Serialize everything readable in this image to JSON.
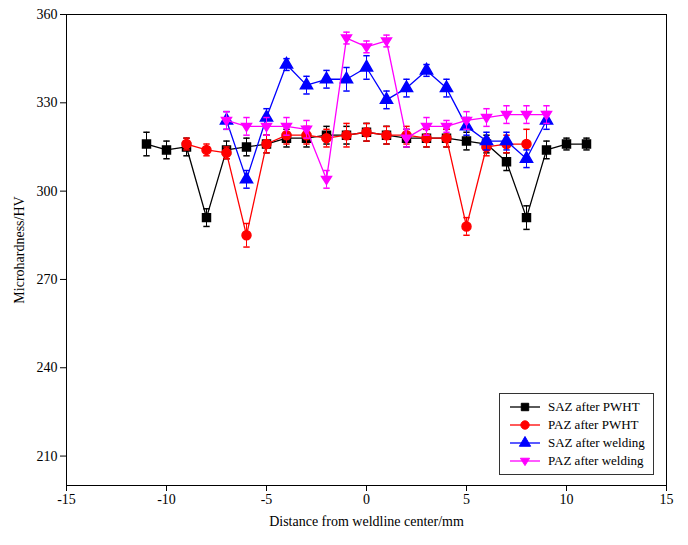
{
  "chart_data": {
    "type": "line",
    "xlabel": "Distance from weldline center/mm",
    "ylabel": "Microhardness/HV",
    "xlim": [
      -15,
      15
    ],
    "xticks": [
      -15,
      -10,
      -5,
      0,
      5,
      10,
      15
    ],
    "ylim": [
      200,
      360
    ],
    "yticks": [
      210,
      240,
      270,
      300,
      330,
      360
    ],
    "legend": "lower right",
    "series": [
      {
        "name": "SAZ after PWHT",
        "color": "#000000",
        "marker": "square",
        "x": [
          -11,
          -10,
          -9,
          -8,
          -7,
          -6,
          -5,
          -4,
          -3,
          -2,
          -1,
          0,
          1,
          2,
          3,
          4,
          5,
          6,
          7,
          8,
          9,
          10,
          11
        ],
        "values": [
          316,
          314,
          315,
          291,
          314,
          315,
          316,
          318,
          318,
          319,
          319,
          320,
          319,
          318,
          318,
          318,
          317,
          316,
          310,
          291,
          314,
          316,
          316
        ],
        "errors": [
          4,
          3,
          3,
          3,
          3,
          3,
          3,
          3,
          3,
          3,
          3,
          3,
          3,
          3,
          3,
          3,
          3,
          3,
          3,
          4,
          3,
          2,
          2
        ]
      },
      {
        "name": "PAZ after PWHT",
        "color": "#ff0000",
        "marker": "circle",
        "x": [
          -9,
          -8,
          -7,
          -6,
          -5,
          -4,
          -3,
          -2,
          -1,
          0,
          1,
          2,
          3,
          4,
          5,
          6,
          7,
          8
        ],
        "values": [
          316,
          314,
          313,
          285,
          316,
          319,
          319,
          318,
          319,
          320,
          319,
          319,
          318,
          318,
          288,
          315,
          316,
          316
        ],
        "errors": [
          2,
          2,
          2,
          4,
          3,
          3,
          3,
          3,
          4,
          3,
          3,
          3,
          3,
          3,
          3,
          3,
          3,
          5
        ]
      },
      {
        "name": "SAZ after welding",
        "color": "#0000ff",
        "marker": "triangle",
        "x": [
          -7,
          -6,
          -5,
          -4,
          -3,
          -2,
          -1,
          0,
          1,
          2,
          3,
          4,
          5,
          6,
          7,
          8,
          9
        ],
        "values": [
          324,
          304,
          325,
          343,
          336,
          338,
          338,
          342,
          331,
          335,
          341,
          335,
          322,
          317,
          317,
          311,
          324
        ],
        "errors": [
          3,
          3,
          3,
          2,
          3,
          3,
          4,
          4,
          3,
          3,
          2,
          3,
          3,
          3,
          3,
          3,
          3
        ]
      },
      {
        "name": "PAZ after welding",
        "color": "#ff00ff",
        "marker": "triangle-down",
        "x": [
          -7,
          -6,
          -5,
          -4,
          -3,
          -2,
          -1,
          0,
          1,
          2,
          3,
          4,
          5,
          6,
          7,
          8,
          9
        ],
        "values": [
          324,
          322,
          322,
          322,
          321,
          304,
          352,
          349,
          351,
          318,
          322,
          322,
          324,
          325,
          326,
          326,
          326
        ],
        "errors": [
          3,
          3,
          3,
          3,
          3,
          3,
          2,
          2,
          2,
          3,
          3,
          2,
          3,
          3,
          3,
          3,
          3
        ]
      }
    ]
  }
}
